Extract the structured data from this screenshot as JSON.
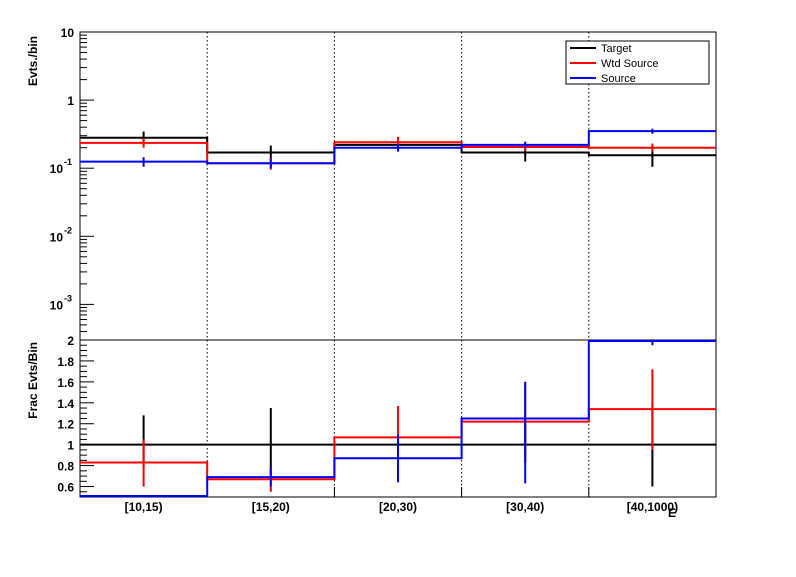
{
  "chart_data": [
    {
      "type": "line",
      "drawstyle": "steps",
      "ylabel": "Evts./bin",
      "yscale": "log",
      "ylim": [
        0.0003,
        10
      ],
      "y_ticks": [
        {
          "base": "10",
          "exp": "-3",
          "v": 0.001
        },
        {
          "base": "10",
          "exp": "-2",
          "v": 0.01
        },
        {
          "base": "10",
          "exp": "-1",
          "v": 0.1
        },
        {
          "base": "1",
          "exp": "",
          "v": 1
        },
        {
          "base": "10",
          "exp": "",
          "v": 10
        }
      ],
      "categories": [
        "[10,15)",
        "[15,20)",
        "[20,30)",
        "[30,40)",
        "[40,1000)"
      ],
      "grid_x": true,
      "legend": {
        "position": "top-right",
        "entries": [
          "Target",
          "Wtd Source",
          "Source"
        ]
      },
      "series": [
        {
          "name": "Target",
          "color": "#000000",
          "values": [
            0.28,
            0.17,
            0.22,
            0.17,
            0.155
          ],
          "err_low": [
            0.22,
            0.13,
            0.18,
            0.125,
            0.105
          ],
          "err_high": [
            0.345,
            0.215,
            0.265,
            0.215,
            0.2
          ]
        },
        {
          "name": "Wtd Source",
          "color": "#ff0000",
          "values": [
            0.235,
            0.118,
            0.24,
            0.205,
            0.2
          ],
          "err_low": [
            0.2,
            0.095,
            0.21,
            0.18,
            0.175
          ],
          "err_high": [
            0.275,
            0.14,
            0.29,
            0.235,
            0.23
          ]
        },
        {
          "name": "Source",
          "color": "#0000ff",
          "values": [
            0.125,
            0.118,
            0.2,
            0.22,
            0.35
          ],
          "err_low": [
            0.105,
            0.1,
            0.175,
            0.195,
            0.32
          ],
          "err_high": [
            0.145,
            0.136,
            0.225,
            0.245,
            0.38
          ]
        }
      ]
    },
    {
      "type": "line",
      "drawstyle": "steps",
      "ylabel": "Frac Evts/Bin",
      "ylim": [
        0.5,
        2.0
      ],
      "y_tick_labels": [
        "0.6",
        "0.8",
        "1",
        "1.2",
        "1.4",
        "1.6",
        "1.8",
        "2"
      ],
      "categories": [
        "[10,15)",
        "[15,20)",
        "[20,30)",
        "[30,40)",
        "[40,1000)"
      ],
      "xlabel": "E",
      "grid_x": true,
      "series": [
        {
          "name": "Target",
          "color": "#000000",
          "values": [
            1,
            1,
            1,
            1,
            1
          ],
          "err_low": [
            0.78,
            0.66,
            0.88,
            0.83,
            0.6
          ],
          "err_high": [
            1.28,
            1.35,
            1.12,
            1.21,
            1.4
          ]
        },
        {
          "name": "Wtd Source",
          "color": "#ff0000",
          "values": [
            0.83,
            0.67,
            1.07,
            1.22,
            1.34
          ],
          "err_low": [
            0.6,
            0.55,
            0.76,
            0.83,
            0.95
          ],
          "err_high": [
            1.05,
            0.78,
            1.37,
            1.6,
            1.72
          ]
        },
        {
          "name": "Source",
          "color": "#0000ff",
          "values": [
            0.5,
            0.69,
            0.87,
            1.25,
            2.0
          ],
          "err_low": [
            0.5,
            0.6,
            0.64,
            0.63,
            1.95
          ],
          "err_high": [
            0.5,
            0.78,
            1.1,
            1.6,
            2.0
          ]
        }
      ]
    }
  ]
}
